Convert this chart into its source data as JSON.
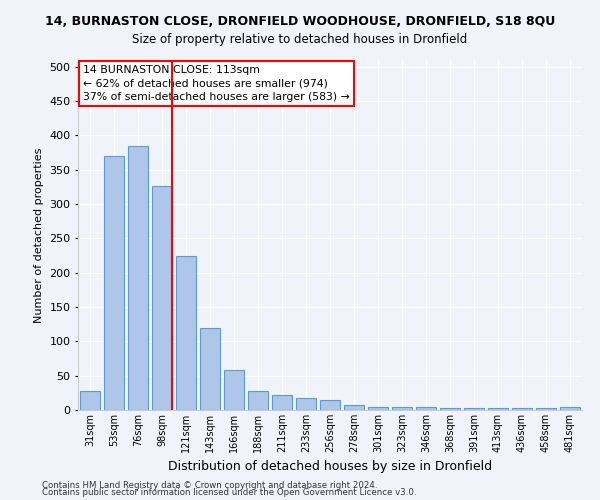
{
  "title": "14, BURNASTON CLOSE, DRONFIELD WOODHOUSE, DRONFIELD, S18 8QU",
  "subtitle": "Size of property relative to detached houses in Dronfield",
  "xlabel": "Distribution of detached houses by size in Dronfield",
  "ylabel": "Number of detached properties",
  "categories": [
    "31sqm",
    "53sqm",
    "76sqm",
    "98sqm",
    "121sqm",
    "143sqm",
    "166sqm",
    "188sqm",
    "211sqm",
    "233sqm",
    "256sqm",
    "278sqm",
    "301sqm",
    "323sqm",
    "346sqm",
    "368sqm",
    "391sqm",
    "413sqm",
    "436sqm",
    "458sqm",
    "481sqm"
  ],
  "values": [
    28,
    370,
    385,
    327,
    225,
    120,
    58,
    28,
    22,
    18,
    14,
    7,
    5,
    5,
    4,
    3,
    3,
    3,
    3,
    3,
    5
  ],
  "bar_color": "#aec6e8",
  "bar_edge_color": "#5b9bd5",
  "vline_color": "red",
  "vline_bar_index": 3,
  "annotation_line1": "14 BURNASTON CLOSE: 113sqm",
  "annotation_line2": "← 62% of detached houses are smaller (974)",
  "annotation_line3": "37% of semi-detached houses are larger (583) →",
  "annotation_box_color": "white",
  "annotation_box_edge": "red",
  "ylim": [
    0,
    510
  ],
  "yticks": [
    0,
    50,
    100,
    150,
    200,
    250,
    300,
    350,
    400,
    450,
    500
  ],
  "footer1": "Contains HM Land Registry data © Crown copyright and database right 2024.",
  "footer2": "Contains public sector information licensed under the Open Government Licence v3.0.",
  "bg_color": "#f0f4fa",
  "plot_bg_color": "#f0f4fa"
}
